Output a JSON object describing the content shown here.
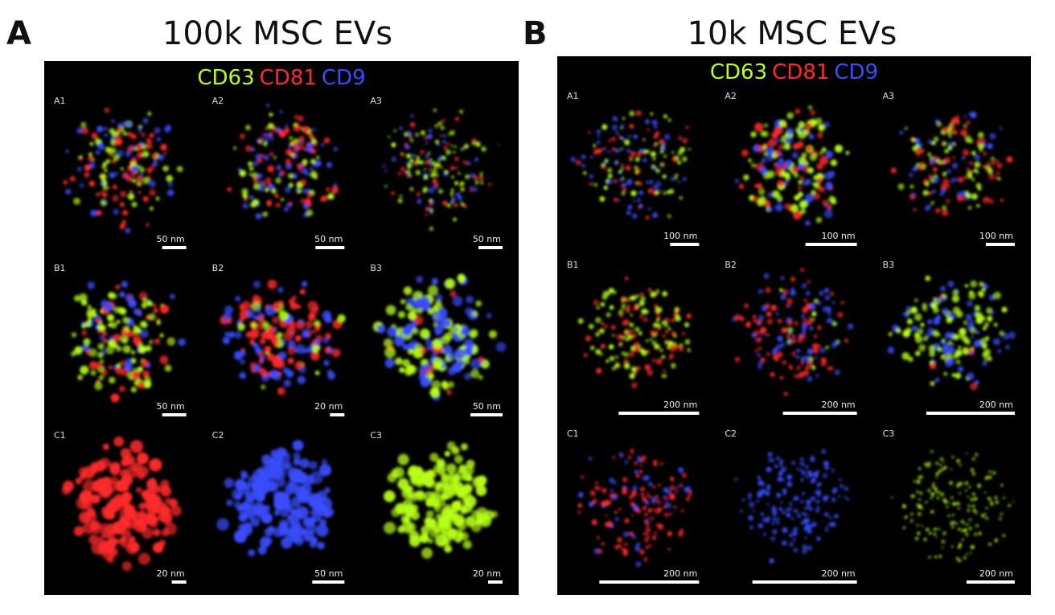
{
  "panels": [
    {
      "letter": "A",
      "title": "100k MSC EVs",
      "legend": [
        "CD63",
        "CD81",
        "CD9"
      ],
      "cells": [
        {
          "label": "A1",
          "scale": "50 nm"
        },
        {
          "label": "A2",
          "scale": "50 nm"
        },
        {
          "label": "A3",
          "scale": "50 nm"
        },
        {
          "label": "B1",
          "scale": "50 nm"
        },
        {
          "label": "B2",
          "scale": "20 nm"
        },
        {
          "label": "B3",
          "scale": "50 nm"
        },
        {
          "label": "C1",
          "scale": "20 nm"
        },
        {
          "label": "C2",
          "scale": "50 nm"
        },
        {
          "label": "C3",
          "scale": "20 nm"
        }
      ]
    },
    {
      "letter": "B",
      "title": "10k MSC EVs",
      "legend": [
        "CD63",
        "CD81",
        "CD9"
      ],
      "cells": [
        {
          "label": "A1",
          "scale": "100 nm"
        },
        {
          "label": "A2",
          "scale": "100 nm"
        },
        {
          "label": "A3",
          "scale": "100 nm"
        },
        {
          "label": "B1",
          "scale": "200 nm"
        },
        {
          "label": "B2",
          "scale": "200 nm"
        },
        {
          "label": "B3",
          "scale": "200 nm"
        },
        {
          "label": "C1",
          "scale": "200 nm"
        },
        {
          "label": "C2",
          "scale": "200 nm"
        },
        {
          "label": "C3",
          "scale": "200 nm"
        }
      ]
    }
  ]
}
